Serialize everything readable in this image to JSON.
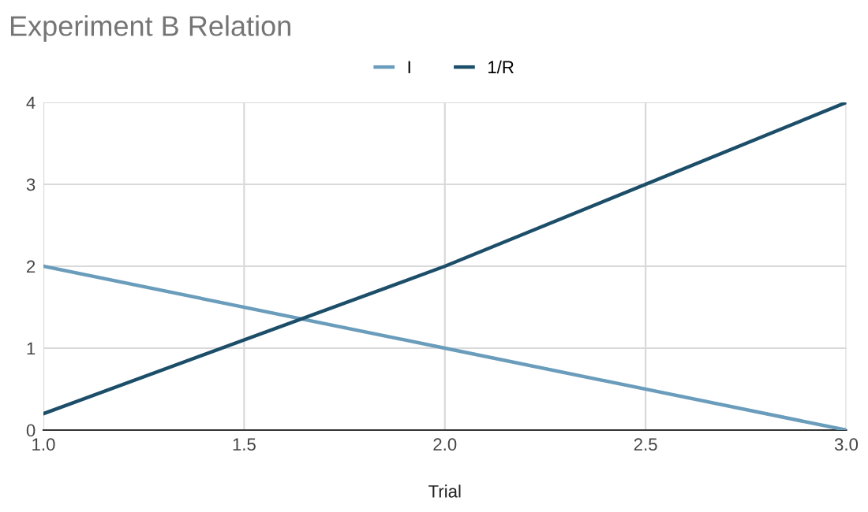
{
  "chart_data": {
    "type": "line",
    "title": "Experiment B Relation",
    "xlabel": "Trial",
    "x": [
      1,
      2,
      3
    ],
    "series": [
      {
        "name": "I",
        "color": "#6a9cbb",
        "values": [
          2,
          1,
          0
        ]
      },
      {
        "name": "1/R",
        "color": "#1c4e6a",
        "values": [
          0.2,
          2,
          4
        ]
      }
    ],
    "xlim": [
      1,
      3
    ],
    "xticks": [
      {
        "value": 1,
        "label": "1.0"
      },
      {
        "value": 1.5,
        "label": "1.5"
      },
      {
        "value": 2,
        "label": "2.0"
      },
      {
        "value": 2.5,
        "label": "2.5"
      },
      {
        "value": 3,
        "label": "3.0"
      }
    ],
    "ylim": [
      0,
      4
    ],
    "yticks": [
      0,
      1,
      2,
      3,
      4
    ],
    "grid": true,
    "legend": "top",
    "marker": "none",
    "line_style": "solid"
  }
}
